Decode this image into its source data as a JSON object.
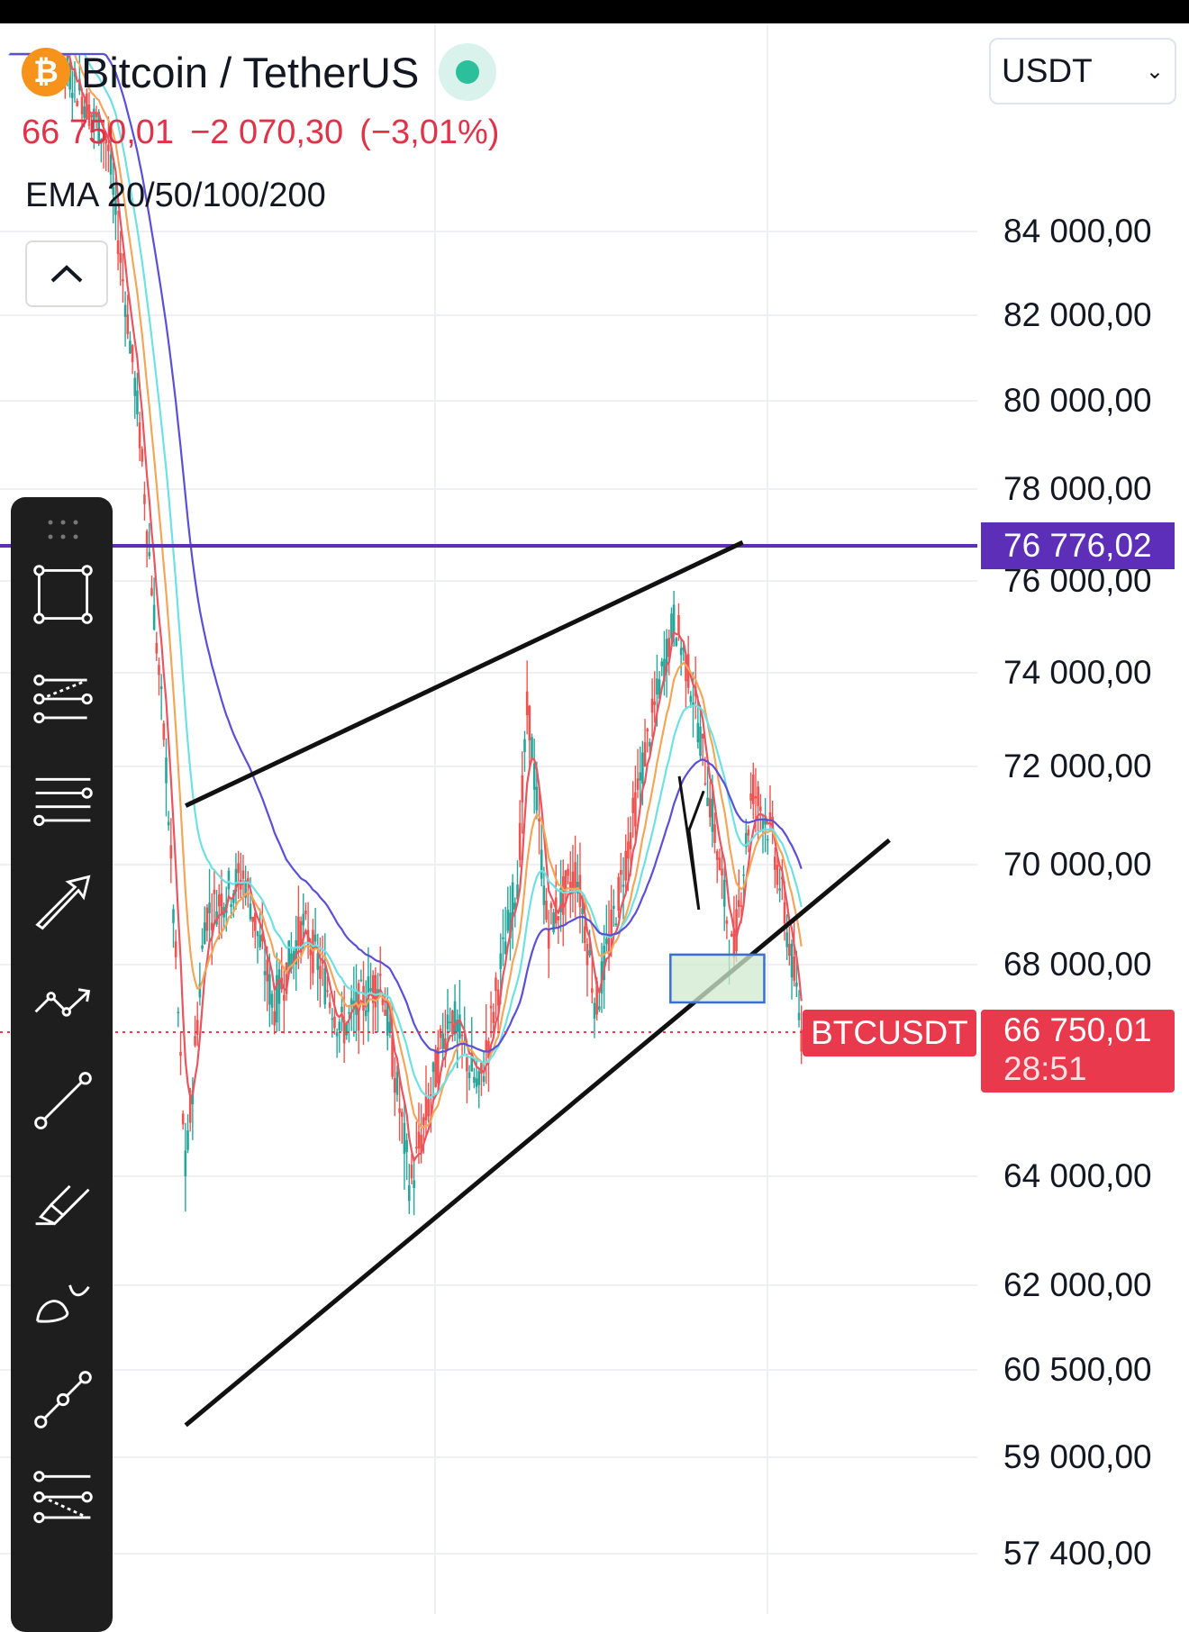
{
  "header": {
    "symbol": "Bitcoin / TetherUS",
    "coin_glyph": "₿",
    "last_price": "66 750,01",
    "change": "−2 070,30",
    "change_pct": "(−3,01%)",
    "indicator": "EMA 20/50/100/200"
  },
  "currency_select": {
    "value": "USDT"
  },
  "price_axis": {
    "ticks": [
      "84 000,00",
      "82 000,00",
      "80 000,00",
      "78 000,00",
      "76 000,00",
      "74 000,00",
      "72 000,00",
      "70 000,00",
      "68 000,00",
      "64 000,00",
      "62 000,00",
      "60 500,00",
      "59 000,00",
      "57 400,00"
    ]
  },
  "horizontal_level": {
    "label": "76 776,02",
    "value": 76776.02,
    "color": "#5d2fb8"
  },
  "current_price": {
    "symbol": "BTCUSDT",
    "price": "66 750,01",
    "countdown": "28:51",
    "value": 66750.01,
    "color": "#e93a4d"
  },
  "ema_colors": {
    "ema20": "#e8555f",
    "ema50": "#f2a65a",
    "ema100": "#6fe0e4",
    "ema200": "#5a4fd6"
  },
  "drawings": {
    "upper_trendline": {
      "from": [
        0.08,
        71200
      ],
      "to": [
        0.56,
        76850
      ]
    },
    "lower_trendline": {
      "from": [
        0.08,
        59550
      ],
      "to": [
        0.73,
        70500
      ]
    },
    "zone": {
      "price_top": 68200,
      "price_bottom": 67300,
      "color": "#cfe9cf",
      "border": "#3b6fd6"
    }
  },
  "toolbar": {
    "tools": [
      "rectangle-tool-icon",
      "fib-retracement-icon",
      "horizontal-lines-icon",
      "arrow-tool-icon",
      "path-tool-icon",
      "trend-line-icon",
      "brush-tool-icon",
      "curve-tool-icon",
      "measure-tool-icon",
      "fib-extension-icon"
    ]
  }
}
